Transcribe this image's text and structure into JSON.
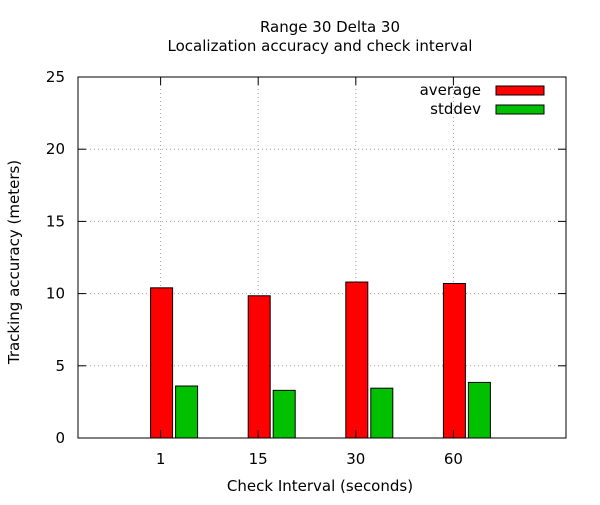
{
  "chart_data": {
    "type": "bar",
    "title": "Range 30 Delta 30",
    "subtitle": "Localization accuracy and check interval",
    "xlabel": "Check Interval (seconds)",
    "ylabel": "Tracking accuracy (meters)",
    "categories": [
      "1",
      "15",
      "30",
      "60"
    ],
    "ylim": [
      0,
      25
    ],
    "yticks": [
      0,
      5,
      10,
      15,
      20,
      25
    ],
    "grid": true,
    "legend_position": "top-right",
    "series": [
      {
        "name": "average",
        "color": "#ff0000",
        "values": [
          10.4,
          9.85,
          10.8,
          10.7
        ]
      },
      {
        "name": "stddev",
        "color": "#00c000",
        "values": [
          3.6,
          3.3,
          3.45,
          3.85
        ]
      }
    ]
  }
}
